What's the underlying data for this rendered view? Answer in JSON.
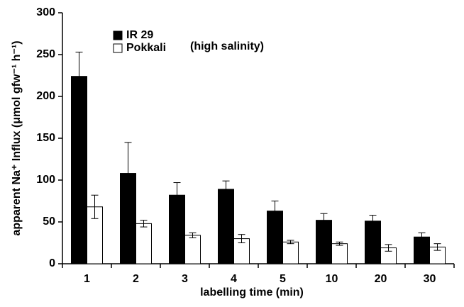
{
  "chart_data": {
    "type": "bar",
    "annotation": "(high salinity)",
    "x_label": "labelling time (min)",
    "y_label": "apparent Na⁺ Influx (μmol gfw⁻¹ h⁻¹)",
    "categories": [
      "1",
      "2",
      "3",
      "4",
      "5",
      "10",
      "20",
      "30"
    ],
    "series": [
      {
        "name": "IR 29",
        "color": "#000000",
        "values": [
          224,
          108,
          82,
          89,
          63,
          52,
          51,
          32
        ],
        "errors": [
          29,
          37,
          15,
          10,
          12,
          8,
          7,
          5
        ],
        "error_sides": "upper"
      },
      {
        "name": "Pokkali",
        "color": "#ffffff",
        "values": [
          68,
          48,
          34,
          30,
          26,
          24,
          19,
          20
        ],
        "errors": [
          14,
          4,
          3,
          5,
          2,
          2,
          4,
          4
        ],
        "error_sides": "both"
      }
    ],
    "ylim": [
      0,
      300
    ],
    "yticks": [
      0,
      50,
      100,
      150,
      200,
      250,
      300
    ],
    "grid": false
  }
}
